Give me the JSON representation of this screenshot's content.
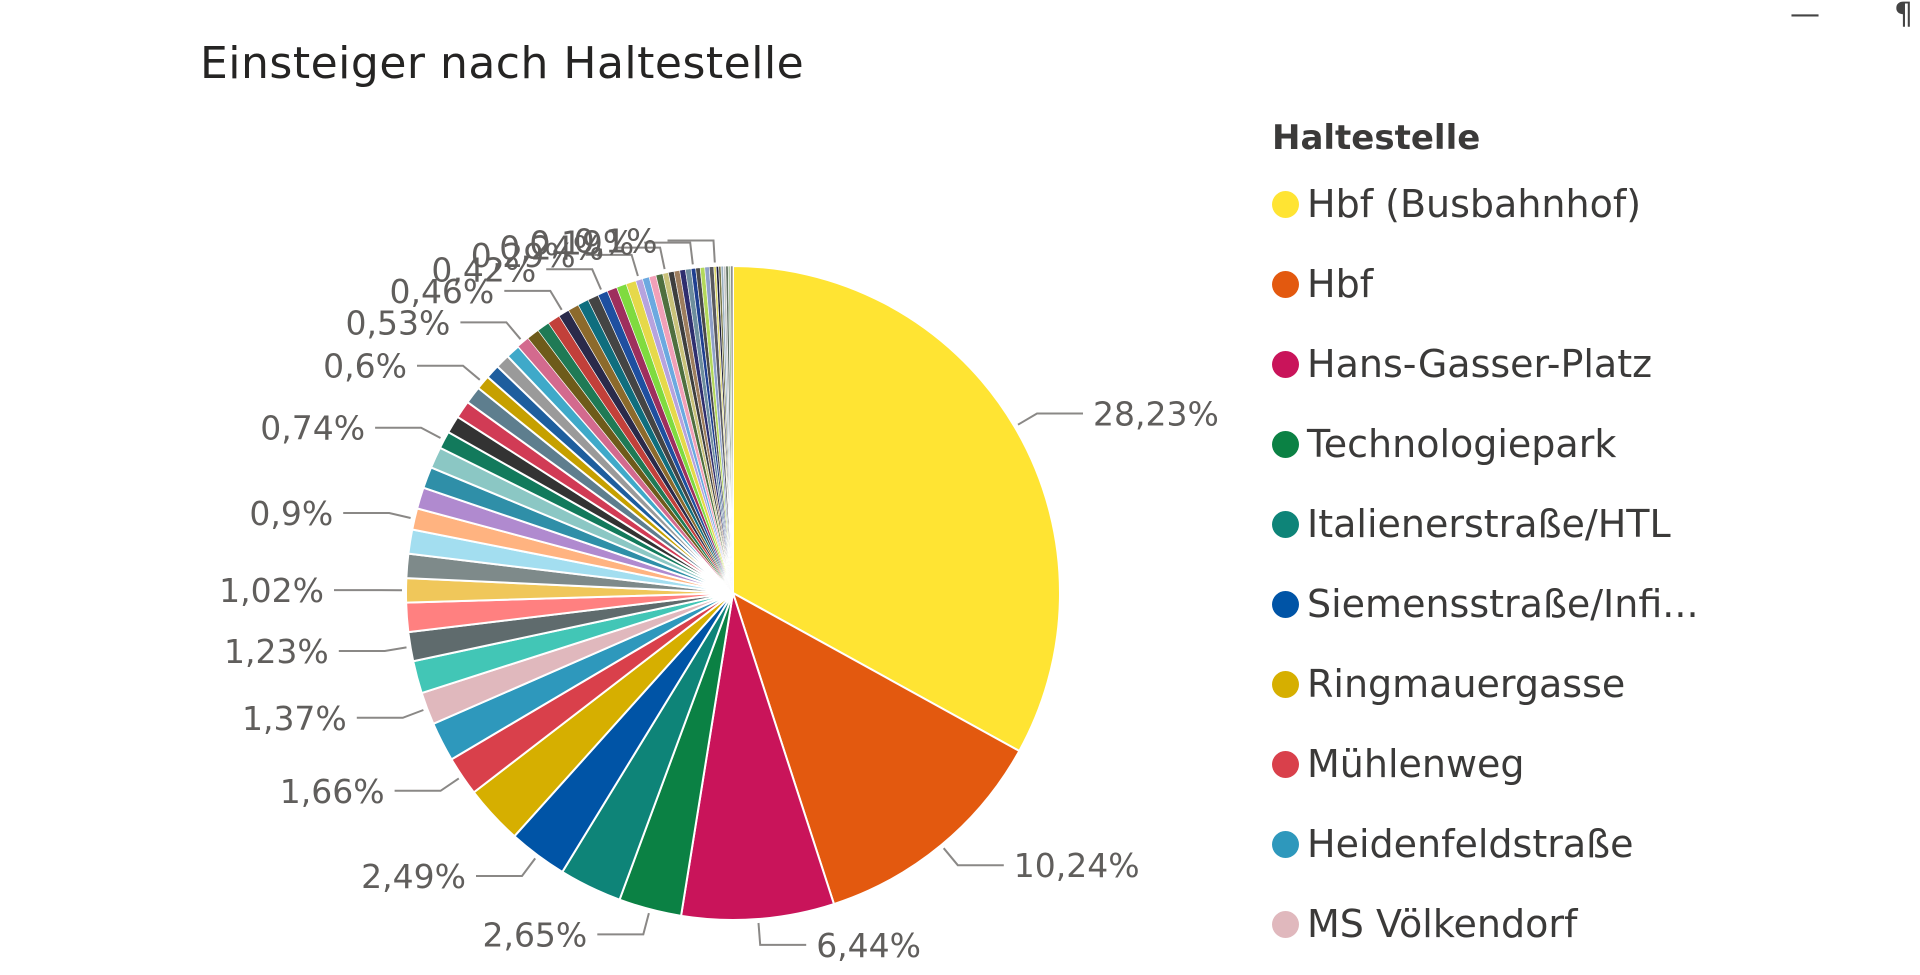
{
  "chart_data": {
    "type": "pie",
    "title": "Einsteiger nach Haltestelle",
    "legend_title": "Haltestelle",
    "legend_position": "right",
    "legend": [
      {
        "name": "Hbf (Busbahnhof)",
        "color": "#FFE433"
      },
      {
        "name": "Hbf",
        "color": "#E3590F"
      },
      {
        "name": "Hans-Gasser-Platz",
        "color": "#C9145A"
      },
      {
        "name": "Technologiepark",
        "color": "#0B8144"
      },
      {
        "name": "Italienerstraße/HTL",
        "color": "#0E8478"
      },
      {
        "name": "Siemensstraße/Infi...",
        "color": "#0054A6"
      },
      {
        "name": "Ringmauergasse",
        "color": "#D6AF00"
      },
      {
        "name": "Mühlenweg",
        "color": "#D9404B"
      },
      {
        "name": "Heidenfeldstraße",
        "color": "#2E98BC"
      },
      {
        "name": "MS Völkendorf",
        "color": "#E0B8BD"
      }
    ],
    "slices": [
      {
        "value": 28.23,
        "label": "28,23%",
        "color": "#FFE433"
      },
      {
        "value": 10.24,
        "label": "10,24%",
        "color": "#E3590F"
      },
      {
        "value": 6.44,
        "label": "6,44%",
        "color": "#C9145A"
      },
      {
        "value": 2.65,
        "label": "2,65%",
        "color": "#0B8144"
      },
      {
        "value": 2.65,
        "label": "",
        "color": "#0E8478"
      },
      {
        "value": 2.49,
        "label": "2,49%",
        "color": "#0054A6"
      },
      {
        "value": 2.49,
        "label": "",
        "color": "#D6AF00"
      },
      {
        "value": 1.66,
        "label": "1,66%",
        "color": "#D9404B"
      },
      {
        "value": 1.66,
        "label": "",
        "color": "#2E98BC"
      },
      {
        "value": 1.37,
        "label": "1,37%",
        "color": "#E0B8BD"
      },
      {
        "value": 1.37,
        "label": "",
        "color": "#42C6B6"
      },
      {
        "value": 1.23,
        "label": "1,23%",
        "color": "#5F6B6D"
      },
      {
        "value": 1.23,
        "label": "",
        "color": "#FF8080"
      },
      {
        "value": 1.02,
        "label": "1,02%",
        "color": "#F0C75A"
      },
      {
        "value": 1.02,
        "label": "",
        "color": "#7E8A8A"
      },
      {
        "value": 1.02,
        "label": "",
        "color": "#A3DEF0"
      },
      {
        "value": 0.9,
        "label": "0,9%",
        "color": "#FFB380"
      },
      {
        "value": 0.9,
        "label": "",
        "color": "#B08ACF"
      },
      {
        "value": 0.9,
        "label": "",
        "color": "#2F8FA8"
      },
      {
        "value": 0.9,
        "label": "",
        "color": "#8BC7C4"
      },
      {
        "value": 0.74,
        "label": "0,74%",
        "color": "#127A5C"
      },
      {
        "value": 0.74,
        "label": "",
        "color": "#333333"
      },
      {
        "value": 0.74,
        "label": "",
        "color": "#D13B55"
      },
      {
        "value": 0.74,
        "label": "",
        "color": "#5E7E8E"
      },
      {
        "value": 0.6,
        "label": "0,6%",
        "color": "#C6A000"
      },
      {
        "value": 0.6,
        "label": "",
        "color": "#1E5E9E"
      },
      {
        "value": 0.6,
        "label": "",
        "color": "#9A9A9A"
      },
      {
        "value": 0.6,
        "label": "",
        "color": "#3FA9C9"
      },
      {
        "value": 0.53,
        "label": "0,53%",
        "color": "#D36A8E"
      },
      {
        "value": 0.53,
        "label": "",
        "color": "#6E5B1A"
      },
      {
        "value": 0.53,
        "label": "",
        "color": "#1F7A55"
      },
      {
        "value": 0.53,
        "label": "",
        "color": "#C2403A"
      },
      {
        "value": 0.46,
        "label": "0,46%",
        "color": "#2A2A4A"
      },
      {
        "value": 0.46,
        "label": "",
        "color": "#8C6A2C"
      },
      {
        "value": 0.46,
        "label": "",
        "color": "#0F6E7E"
      },
      {
        "value": 0.46,
        "label": "",
        "color": "#444444"
      },
      {
        "value": 0.42,
        "label": "0,42%",
        "color": "#1E4FA0"
      },
      {
        "value": 0.42,
        "label": "",
        "color": "#9E2F5D"
      },
      {
        "value": 0.42,
        "label": "",
        "color": "#7FDB3F"
      },
      {
        "value": 0.42,
        "label": "",
        "color": "#E6D94A"
      },
      {
        "value": 0.29,
        "label": "0,29%",
        "color": "#B6A3DE"
      },
      {
        "value": 0.29,
        "label": "",
        "color": "#6BA9E0"
      },
      {
        "value": 0.29,
        "label": "",
        "color": "#F2A0B8"
      },
      {
        "value": 0.29,
        "label": "",
        "color": "#4F6F3F"
      },
      {
        "value": 0.24,
        "label": "0,24%",
        "color": "#C9C27A"
      },
      {
        "value": 0.24,
        "label": "",
        "color": "#3E3E3E"
      },
      {
        "value": 0.24,
        "label": "",
        "color": "#9E7E5E"
      },
      {
        "value": 0.24,
        "label": "",
        "color": "#2E2E6E"
      },
      {
        "value": 0.24,
        "label": "",
        "color": "#6E8E9E"
      },
      {
        "value": 0.19,
        "label": "0,19%",
        "color": "#1F3F8F"
      },
      {
        "value": 0.19,
        "label": "",
        "color": "#4A4A4A"
      },
      {
        "value": 0.19,
        "label": "",
        "color": "#B3D85B"
      },
      {
        "value": 0.19,
        "label": "",
        "color": "#8FA0C8"
      },
      {
        "value": 0.19,
        "label": "",
        "color": "#59595E"
      },
      {
        "value": 0.1,
        "label": "0,1%",
        "color": "#DAD46A"
      },
      {
        "value": 0.1,
        "label": "",
        "color": "#1A1A3A"
      },
      {
        "value": 0.1,
        "label": "",
        "color": "#7A7A4A"
      },
      {
        "value": 0.1,
        "label": "",
        "color": "#9AB0C0"
      },
      {
        "value": 0.1,
        "label": "",
        "color": "#C4C4C4"
      },
      {
        "value": 0.1,
        "label": "",
        "color": "#5E6E5E"
      },
      {
        "value": 0.1,
        "label": "",
        "color": "#AFC8A0"
      },
      {
        "value": 0.1,
        "label": "",
        "color": "#8E8E8E"
      }
    ]
  },
  "window": {
    "minimize_glyph": "—",
    "corner_glyph": "¶"
  }
}
